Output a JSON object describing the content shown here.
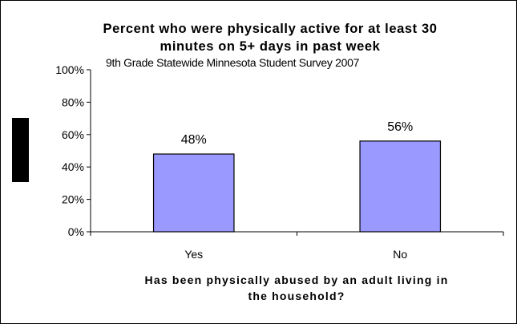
{
  "chart_data": {
    "type": "bar",
    "title": "Percent who were physically active for at least 30 minutes on 5+ days in past week",
    "title_lines": [
      "Percent who were physically active for at least 30",
      "minutes on 5+ days in past week"
    ],
    "subtitle": "9th Grade Statewide Minnesota Student Survey 2007",
    "categories": [
      "Yes",
      "No"
    ],
    "values": [
      48,
      56
    ],
    "data_labels": [
      "48%",
      "56%"
    ],
    "xlabel": "Has been physically abused by an adult living in the household?",
    "xlabel_lines": [
      "Has been physically abused by an adult living in",
      "the household?"
    ],
    "ylabel": "",
    "ylim": [
      0,
      100
    ],
    "yticks": [
      0,
      20,
      40,
      60,
      80,
      100
    ],
    "ytick_labels": [
      "0%",
      "20%",
      "40%",
      "60%",
      "80%",
      "100%"
    ],
    "grid": false,
    "legend": "none",
    "colors": {
      "bar_fill": "#9999ff",
      "bar_stroke": "#000000",
      "axis": "#000000",
      "page_border": "#000000",
      "left_marker": "#000000"
    }
  }
}
